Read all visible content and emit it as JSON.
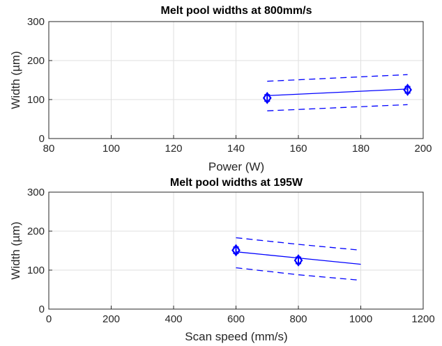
{
  "chart_data": [
    {
      "type": "line",
      "title": "Melt pool widths at 800mm/s",
      "xlabel": "Power (W)",
      "ylabel": "Width (µm)",
      "xlim": [
        80,
        200
      ],
      "ylim": [
        0,
        300
      ],
      "xticks": [
        "80",
        "100",
        "120",
        "140",
        "160",
        "180",
        "200"
      ],
      "yticks": [
        "0",
        "100",
        "200",
        "300"
      ],
      "grid": true,
      "color": "#0000ff",
      "measured": {
        "x": [
          150,
          195
        ],
        "y": [
          104,
          125
        ],
        "err": [
          8,
          8
        ]
      },
      "series": [
        {
          "style": "solid",
          "x": [
            150,
            195
          ],
          "y": [
            110,
            127
          ]
        },
        {
          "style": "dashed",
          "x": [
            150,
            195
          ],
          "y": [
            147,
            164
          ]
        },
        {
          "style": "dashed",
          "x": [
            150,
            195
          ],
          "y": [
            71,
            87
          ]
        }
      ]
    },
    {
      "type": "line",
      "title": "Melt pool widths at 195W",
      "xlabel": "Scan speed (mm/s)",
      "ylabel": "Width (µm)",
      "xlim": [
        0,
        1200
      ],
      "ylim": [
        0,
        300
      ],
      "xticks": [
        "0",
        "200",
        "400",
        "600",
        "800",
        "1000",
        "1200"
      ],
      "yticks": [
        "0",
        "100",
        "200",
        "300"
      ],
      "grid": true,
      "color": "#0000ff",
      "measured": {
        "x": [
          600,
          800
        ],
        "y": [
          151,
          125
        ],
        "err": [
          8,
          8
        ]
      },
      "series": [
        {
          "style": "solid",
          "x": [
            600,
            800,
            1000
          ],
          "y": [
            147,
            131,
            115
          ]
        },
        {
          "style": "dashed",
          "x": [
            600,
            800,
            1000
          ],
          "y": [
            183,
            166,
            151
          ]
        },
        {
          "style": "dashed",
          "x": [
            600,
            800,
            1000
          ],
          "y": [
            106,
            88,
            74
          ]
        }
      ]
    }
  ]
}
